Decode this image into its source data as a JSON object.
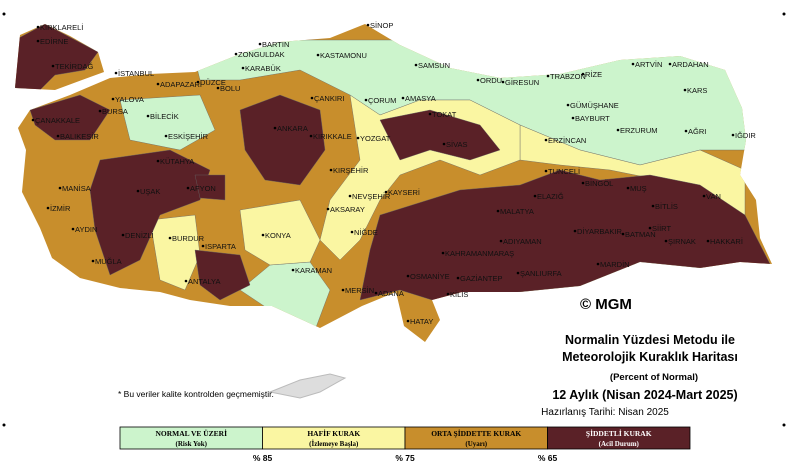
{
  "map": {
    "title_lines": [
      "Normalin Yüzdesi Metodu ile",
      "Meteorolojik Kuraklık Haritası"
    ],
    "subtitle": "(Percent of Normal)",
    "period": "12 Aylık (Nisan 2024-Mart 2025)",
    "prepared": "Hazırlanış Tarihi: Nisan 2025",
    "copyright": "© MGM",
    "note": "* Bu veriler kalite kontrolden geçmemiştir.",
    "legend": [
      {
        "label": "NORMAL VE ÜZERİ",
        "sublabel": "(Risk Yok)",
        "color": "#ccf4cc"
      },
      {
        "label": "HAFİF KURAK",
        "sublabel": "(İzlemeye Başla)",
        "color": "#faf6a2"
      },
      {
        "label": "ORTA ŞİDDETTE KURAK",
        "sublabel": "(Uyarı)",
        "color": "#c88e2c"
      },
      {
        "label": "ŞİDDETLİ KURAK",
        "sublabel": "(Acil Durum)",
        "color": "#5a2127"
      }
    ],
    "thresholds": [
      "% 85",
      "% 75",
      "% 65"
    ],
    "cities": [
      "KIRKLARELİ",
      "EDİRNE",
      "TEKİRDAĞ",
      "İSTANBUL",
      "ADAPAZARI",
      "DÜZCE",
      "BOLU",
      "YALOVA",
      "BURSA",
      "BİLECİK",
      "ESKİŞEHİR",
      "ÇANAKKALE",
      "BALIKESİR",
      "BARTIN",
      "ZONGULDAK",
      "KARABÜK",
      "KASTAMONU",
      "SİNOP",
      "SAMSUN",
      "ORDU",
      "GİRESUN",
      "TRABZON",
      "RİZE",
      "ARTVİN",
      "ARDAHAN",
      "KARS",
      "AĞRI",
      "IĞDIR",
      "ÇANKIRI",
      "ÇORUM",
      "AMASYA",
      "TOKAT",
      "GÜMÜŞHANE",
      "BAYBURT",
      "ERZURUM",
      "ERZİNCAN",
      "ANKARA",
      "KIRIKKALE",
      "YOZGAT",
      "SİVAS",
      "TUNCELİ",
      "BİNGÖL",
      "MUŞ",
      "VAN",
      "BİTLİS",
      "KÜTAHYA",
      "MANİSA",
      "UŞAK",
      "AFYON",
      "KIRŞEHİR",
      "NEVŞEHİR",
      "KAYSERİ",
      "AKSARAY",
      "MALATYA",
      "ELAZIĞ",
      "İZMİR",
      "AYDIN",
      "DENİZLİ",
      "BURDUR",
      "ISPARTA",
      "KONYA",
      "NİĞDE",
      "KAHRAMANMARAŞ",
      "ADIYAMAN",
      "DİYARBAKIR",
      "BATMAN",
      "SİİRT",
      "ŞIRNAK",
      "HAKKARİ",
      "MUĞLA",
      "ANTALYA",
      "KARAMAN",
      "MERSİN",
      "ADANA",
      "OSMANİYE",
      "GAZİANTEP",
      "ŞANLIURFA",
      "MARDİN",
      "KİLİS",
      "HATAY"
    ]
  }
}
